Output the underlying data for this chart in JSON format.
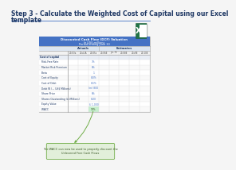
{
  "title_line1": "Step 3 - Calculate the Weighted Cost of Capital using our Excel",
  "title_line2": "template",
  "bg_color": "#f5f5f5",
  "title_color": "#1f3864",
  "title_fontsize": 5.5,
  "table_title1": "Discounted Cash Flow (DCF) Valuation",
  "table_title2": "In US$ millions",
  "table_title3": "Period ending June 30",
  "table_header_bg": "#4472c4",
  "actuals_label": "Actuals",
  "estimates_label": "Estimates",
  "col_headers": [
    "20-03a",
    "20x4.A",
    "20-05a",
    "20-06E",
    "Jun-7E",
    "20-08E",
    "20x9E",
    "20-10E"
  ],
  "row_labels": [
    "Cost of capital",
    "  Risk-Free Rate",
    "  Market Risk Premium",
    "  Beta",
    "  Cost of Equity",
    "  Cost of Debt",
    "  Debt W (.., US$ Millions)",
    "  Share Price",
    "  Shares Outstanding (in Millions)",
    "  Equity Value",
    "  WACC"
  ],
  "row_values": [
    "",
    "7%",
    "6%",
    "1",
    "8.0%",
    "6.5%",
    "(m) 800",
    "6%",
    "6.00",
    "$ 1,000",
    "10%"
  ],
  "wacc_col_idx": 2,
  "callout_text": "The WACC can now be used to properly discount the\nUnlevered Free Cash Flows",
  "callout_bg": "#e2efda",
  "callout_border": "#70ad47",
  "arrow_color": "#70ad47",
  "excel_bg": "#217346",
  "excel_inner": "#1a5c36",
  "divider_color": "#4472c4",
  "table_border_color": "#aaaaaa",
  "value_color": "#4472c4",
  "wacc_value_color": "#375623",
  "wacc_cell_bg": "#c6efce",
  "title_label_color": "#1f3864"
}
